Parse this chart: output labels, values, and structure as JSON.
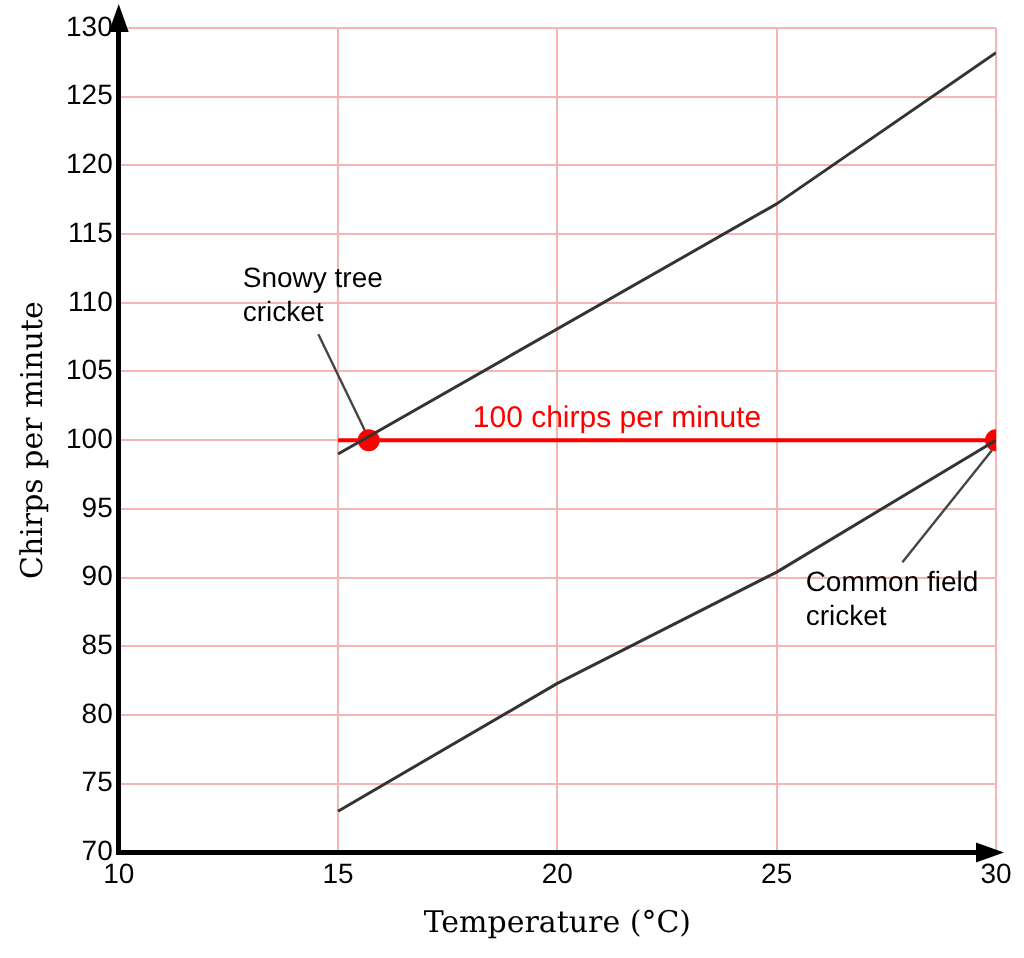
{
  "chart_data": {
    "type": "line",
    "xlabel": "Temperature (°C)",
    "ylabel": "Chirps per minute",
    "xlim": [
      10,
      30
    ],
    "xticks": [
      10,
      15,
      20,
      25,
      30
    ],
    "ylim": [
      70,
      130
    ],
    "yticks": [
      70,
      75,
      80,
      85,
      90,
      95,
      100,
      105,
      110,
      115,
      120,
      125,
      130
    ],
    "grid": true,
    "legend": false,
    "series": [
      {
        "color": "#333333",
        "x": [
          15,
          25,
          30
        ],
        "values": [
          99,
          117.2,
          128.2
        ]
      },
      {
        "color": "#333333",
        "x": [
          15,
          20,
          25,
          30
        ],
        "values": [
          73,
          82.3,
          90.4,
          100
        ]
      },
      {
        "name": "100 chirps per minute",
        "color": "#ff0000",
        "x": [
          15,
          30
        ],
        "values": [
          100,
          100
        ]
      },
      {
        "type": "scatter",
        "color": "#ff0000",
        "x": [
          15.7,
          30
        ],
        "values": [
          100,
          100
        ]
      }
    ],
    "annotations": [
      {
        "text": "Snowy tree cricket",
        "x": 15.7,
        "y": 100
      },
      {
        "text": "Common field cricket",
        "x": 30,
        "y": 100
      }
    ]
  }
}
